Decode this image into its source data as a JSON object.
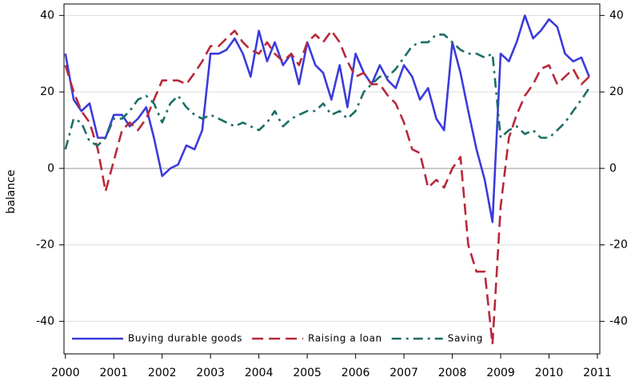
{
  "chart_data": {
    "type": "line",
    "y_label": "balance",
    "x": [
      2000,
      2000.17,
      2000.33,
      2000.5,
      2000.67,
      2000.83,
      2001,
      2001.17,
      2001.33,
      2001.5,
      2001.67,
      2001.83,
      2002,
      2002.17,
      2002.33,
      2002.5,
      2002.67,
      2002.83,
      2003,
      2003.17,
      2003.33,
      2003.5,
      2003.67,
      2003.83,
      2004,
      2004.17,
      2004.33,
      2004.5,
      2004.67,
      2004.83,
      2005,
      2005.17,
      2005.33,
      2005.5,
      2005.67,
      2005.83,
      2006,
      2006.17,
      2006.33,
      2006.5,
      2006.67,
      2006.83,
      2007,
      2007.17,
      2007.33,
      2007.5,
      2007.67,
      2007.83,
      2008,
      2008.17,
      2008.33,
      2008.5,
      2008.67,
      2008.83,
      2009,
      2009.17,
      2009.33,
      2009.5,
      2009.67,
      2009.83,
      2010,
      2010.17,
      2010.33,
      2010.5,
      2010.67,
      2010.83
    ],
    "series": [
      {
        "name": "Buying durable goods",
        "color": "#3b3bdc",
        "style": "solid",
        "values": [
          30,
          18,
          15,
          17,
          8,
          8,
          14,
          14,
          11,
          13,
          16,
          8,
          -2,
          0,
          1,
          6,
          5,
          10,
          30,
          30,
          31,
          34,
          30,
          24,
          36,
          28,
          33,
          27,
          30,
          22,
          33,
          27,
          25,
          18,
          27,
          16,
          30,
          25,
          22,
          27,
          23,
          21,
          27,
          24,
          18,
          21,
          13,
          10,
          33,
          25,
          15,
          5,
          -3,
          -14,
          30,
          28,
          33,
          40,
          34,
          36,
          39,
          37,
          30,
          28,
          29,
          24
        ]
      },
      {
        "name": "Raising a loan",
        "color": "#b8283a",
        "style": "dashed",
        "values": [
          27,
          20,
          15,
          12,
          5,
          -6,
          2,
          10,
          12,
          10,
          13,
          18,
          23,
          23,
          23,
          22,
          25,
          28,
          32,
          32,
          34,
          36,
          33,
          31,
          30,
          33,
          30,
          28,
          30,
          27,
          33,
          35,
          33,
          36,
          33,
          28,
          24,
          25,
          22,
          22,
          19,
          17,
          12,
          5,
          4,
          -5,
          -3,
          -5,
          0,
          3,
          -20,
          -27,
          -27,
          -46,
          -10,
          8,
          14,
          19,
          22,
          26,
          27,
          22,
          24,
          26,
          22,
          24
        ]
      },
      {
        "name": "Saving",
        "color": "#1a6e66",
        "style": "dashdot",
        "values": [
          5,
          13,
          12,
          7,
          6,
          8,
          13,
          13,
          15,
          18,
          19,
          17,
          12,
          17,
          19,
          16,
          14,
          13,
          14,
          13,
          12,
          11,
          12,
          11,
          10,
          12,
          15,
          11,
          13,
          14,
          15,
          15,
          17,
          14,
          15,
          13,
          15,
          20,
          22,
          24,
          24,
          26,
          29,
          32,
          33,
          33,
          35,
          35,
          33,
          31,
          30,
          30,
          29,
          30,
          8,
          10,
          11,
          9,
          10,
          8,
          8,
          10,
          12,
          15,
          18,
          21
        ]
      }
    ],
    "xlim": [
      1999.97,
      2011.05
    ],
    "xticks": [
      2000,
      2001,
      2002,
      2003,
      2004,
      2005,
      2006,
      2007,
      2008,
      2009,
      2010,
      2011
    ],
    "ylim": [
      -48.5,
      43
    ],
    "yticks": [
      -40,
      -20,
      0,
      20,
      40
    ],
    "y2lim": [
      -48.5,
      43
    ],
    "y2ticks": [
      -40,
      -20,
      0,
      20,
      40
    ],
    "grid": true,
    "legend": "bottom"
  }
}
